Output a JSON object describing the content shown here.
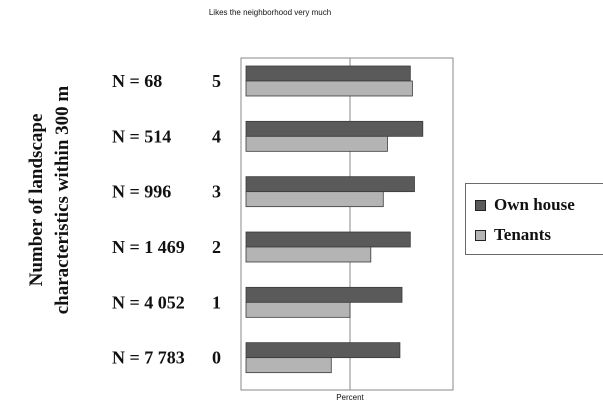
{
  "chart_data": {
    "type": "bar",
    "orientation": "horizontal",
    "title": "Likes the neighborhood very much",
    "xlabel": "Percent",
    "ylabel": "Number of landscape characteristics within 300 m",
    "categories": [
      "5",
      "4",
      "3",
      "2",
      "1",
      "0"
    ],
    "category_counts": [
      "N = 68",
      "N = 514",
      "N = 996",
      "N = 1 469",
      "N = 4 052",
      "N = 7 783"
    ],
    "series": [
      {
        "name": "Own house",
        "color": "#5a5a5a",
        "values": [
          79,
          85,
          81,
          79,
          75,
          74
        ]
      },
      {
        "name": "Tenants",
        "color": "#b4b4b4",
        "values": [
          80,
          68,
          66,
          60,
          50,
          41
        ]
      }
    ],
    "xlim": [
      0,
      100
    ],
    "grid": true,
    "legend_position": "right"
  }
}
